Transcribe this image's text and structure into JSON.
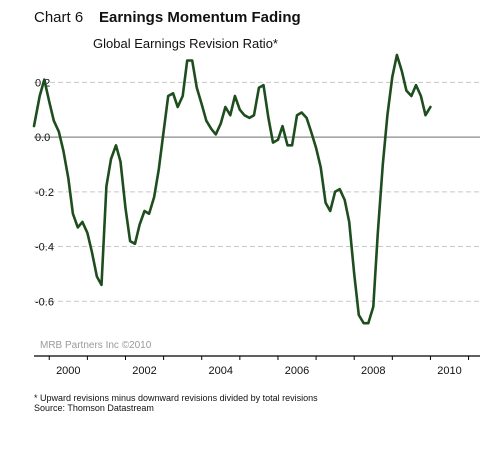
{
  "header": {
    "chart_label": "Chart 6",
    "title": "Earnings Momentum Fading",
    "subtitle": "Global Earnings Revision Ratio*"
  },
  "watermark": "MRB Partners Inc ©2010",
  "footnotes": {
    "note": "* Upward revisions minus downward revisions divided by total revisions",
    "source": "Source: Thomson Datastream"
  },
  "colors": {
    "line": "#1e4d1e",
    "grid": "#c8c8c8",
    "zero": "#8a8a8a",
    "axis": "#000000",
    "watermark": "#9a9a9a"
  },
  "chart_data": {
    "type": "line",
    "title": "Global Earnings Revision Ratio*",
    "xlabel": "",
    "ylabel": "",
    "xlim": [
      1999.6,
      2011.3
    ],
    "ylim": [
      -0.8,
      0.3
    ],
    "y_ticks": [
      0.2,
      0.0,
      -0.2,
      -0.4,
      -0.6
    ],
    "y_tick_labels": [
      "0.2",
      "0.0",
      "-0.2",
      "-0.4",
      "-0.6"
    ],
    "x_ticks": [
      2000,
      2002,
      2004,
      2006,
      2008,
      2010
    ],
    "x_tick_labels": [
      "2000",
      "2002",
      "2004",
      "2006",
      "2008",
      "2010"
    ],
    "grid": "horizontal dashed",
    "series": [
      {
        "x": [
          1999.6,
          1999.75,
          1999.87,
          2000.0,
          2000.12,
          2000.25,
          2000.37,
          2000.5,
          2000.62,
          2000.75,
          2000.87,
          2001.0,
          2001.12,
          2001.25,
          2001.37,
          2001.5,
          2001.62,
          2001.75,
          2001.87,
          2002.0,
          2002.12,
          2002.25,
          2002.37,
          2002.5,
          2002.62,
          2002.75,
          2002.87,
          2003.0,
          2003.12,
          2003.25,
          2003.37,
          2003.5,
          2003.62,
          2003.75,
          2003.87,
          2004.0,
          2004.12,
          2004.25,
          2004.37,
          2004.5,
          2004.62,
          2004.75,
          2004.87,
          2005.0,
          2005.12,
          2005.25,
          2005.37,
          2005.5,
          2005.62,
          2005.75,
          2005.87,
          2006.0,
          2006.12,
          2006.25,
          2006.37,
          2006.5,
          2006.62,
          2006.75,
          2006.87,
          2007.0,
          2007.12,
          2007.25,
          2007.37,
          2007.5,
          2007.62,
          2007.75,
          2007.87,
          2008.0,
          2008.12,
          2008.25,
          2008.37,
          2008.5,
          2008.62,
          2008.75,
          2008.87,
          2009.0,
          2009.12,
          2009.25,
          2009.37,
          2009.5,
          2009.62,
          2009.75,
          2009.87,
          2010.0
        ],
        "values": [
          0.04,
          0.15,
          0.21,
          0.13,
          0.06,
          0.02,
          -0.05,
          -0.15,
          -0.28,
          -0.33,
          -0.31,
          -0.35,
          -0.42,
          -0.51,
          -0.54,
          -0.18,
          -0.08,
          -0.03,
          -0.09,
          -0.26,
          -0.38,
          -0.39,
          -0.32,
          -0.27,
          -0.28,
          -0.22,
          -0.12,
          0.02,
          0.15,
          0.16,
          0.11,
          0.15,
          0.28,
          0.28,
          0.18,
          0.12,
          0.06,
          0.03,
          0.01,
          0.05,
          0.11,
          0.08,
          0.15,
          0.1,
          0.08,
          0.07,
          0.08,
          0.18,
          0.19,
          0.07,
          -0.02,
          -0.01,
          0.04,
          -0.03,
          -0.03,
          0.08,
          0.09,
          0.07,
          0.02,
          -0.04,
          -0.11,
          -0.24,
          -0.27,
          -0.2,
          -0.19,
          -0.23,
          -0.31,
          -0.5,
          -0.65,
          -0.68,
          -0.68,
          -0.62,
          -0.35,
          -0.1,
          0.08,
          0.22,
          0.3,
          0.24,
          0.17,
          0.15,
          0.19,
          0.15,
          0.08,
          0.11
        ]
      }
    ]
  }
}
